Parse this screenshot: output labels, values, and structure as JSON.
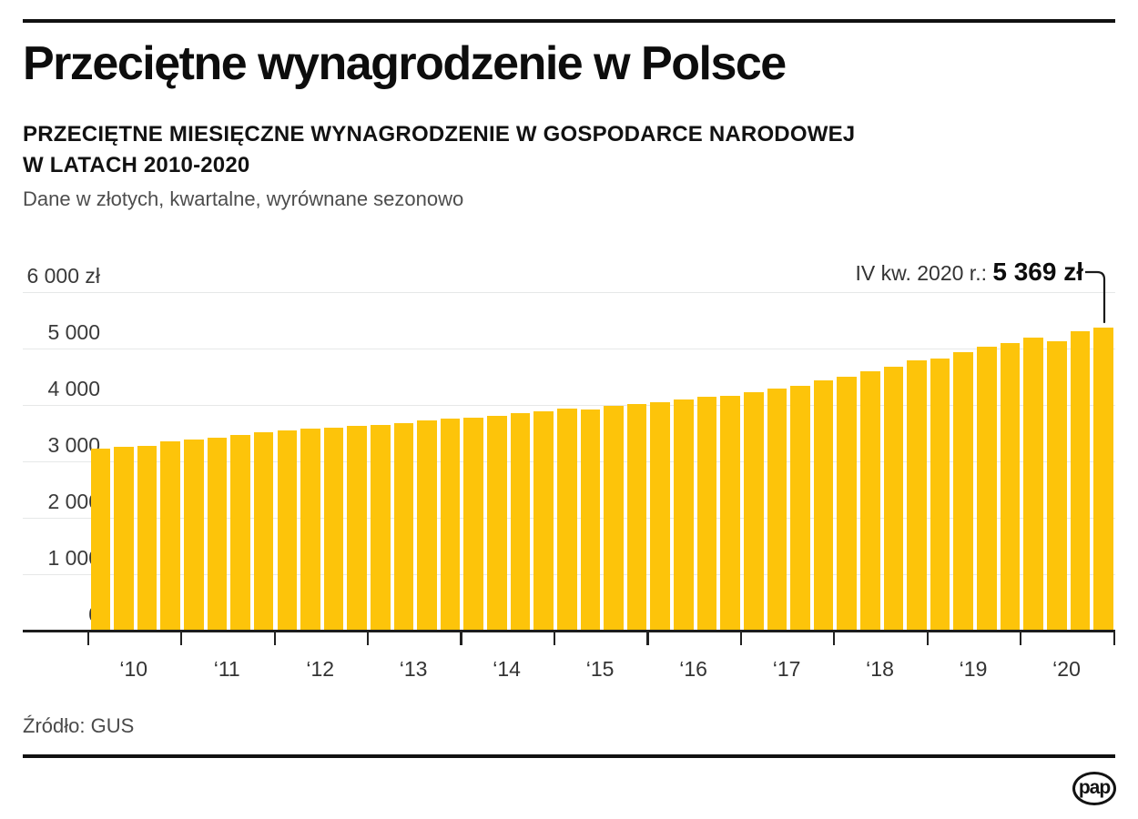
{
  "header": {
    "title": "Przeciętne wynagrodzenie w Polsce",
    "subtitle_line1": "PRZECIĘTNE MIESIĘCZNE WYNAGRODZENIE W GOSPODARCE NARODOWEJ",
    "subtitle_line2": "W LATACH 2010-2020",
    "description": "Dane w złotych, kwartalne, wyrównane sezonowo"
  },
  "annotation": {
    "label": "IV kw. 2020 r.: ",
    "value": "5 369 zł"
  },
  "source": "Źródło: GUS",
  "logo": "pap",
  "colors": {
    "bar": "#FDC40A",
    "text": "#0D0D0D",
    "muted_text": "#4D4D4D",
    "axis_text": "#3A3A3A",
    "gridline": "#E6E8E8",
    "axis_line": "#1D1D1D"
  },
  "chart_data": {
    "type": "bar",
    "title": "Przeciętne miesięczne wynagrodzenie w gospodarce narodowej w latach 2010-2020",
    "subtitle": "Dane w złotych, kwartalne, wyrównane sezonowo",
    "unit": "zł",
    "ylim": [
      0,
      6000
    ],
    "grid": true,
    "legend": "none",
    "y_ticks": [
      {
        "value": 6000,
        "label": "6 000 zł"
      },
      {
        "value": 5000,
        "label": "5 000"
      },
      {
        "value": 4000,
        "label": "4 000"
      },
      {
        "value": 3000,
        "label": "3 000"
      },
      {
        "value": 2000,
        "label": "2 000"
      },
      {
        "value": 1000,
        "label": "1 000"
      },
      {
        "value": 0,
        "label": "0"
      }
    ],
    "x_year_labels": [
      "‘10",
      "‘11",
      "‘12",
      "‘13",
      "‘14",
      "‘15",
      "‘16",
      "‘17",
      "‘18",
      "‘19",
      "‘20"
    ],
    "bars_per_year": 4,
    "categories": [
      "2010 Q1",
      "2010 Q2",
      "2010 Q3",
      "2010 Q4",
      "2011 Q1",
      "2011 Q2",
      "2011 Q3",
      "2011 Q4",
      "2012 Q1",
      "2012 Q2",
      "2012 Q3",
      "2012 Q4",
      "2013 Q1",
      "2013 Q2",
      "2013 Q3",
      "2013 Q4",
      "2014 Q1",
      "2014 Q2",
      "2014 Q3",
      "2014 Q4",
      "2015 Q1",
      "2015 Q2",
      "2015 Q3",
      "2015 Q4",
      "2016 Q1",
      "2016 Q2",
      "2016 Q3",
      "2016 Q4",
      "2017 Q1",
      "2017 Q2",
      "2017 Q3",
      "2017 Q4",
      "2018 Q1",
      "2018 Q2",
      "2018 Q3",
      "2018 Q4",
      "2019 Q1",
      "2019 Q2",
      "2019 Q3",
      "2019 Q4",
      "2020 Q1",
      "2020 Q2",
      "2020 Q3",
      "2020 Q4"
    ],
    "values": [
      3220,
      3255,
      3270,
      3355,
      3380,
      3420,
      3475,
      3510,
      3555,
      3575,
      3595,
      3625,
      3645,
      3680,
      3720,
      3755,
      3780,
      3810,
      3855,
      3880,
      3930,
      3920,
      3980,
      4015,
      4050,
      4090,
      4140,
      4155,
      4225,
      4290,
      4340,
      4430,
      4500,
      4605,
      4680,
      4785,
      4820,
      4930,
      5040,
      5105,
      5200,
      5125,
      5310,
      5369
    ],
    "highlight": {
      "category": "2020 Q4",
      "value": 5369,
      "label": "IV kw. 2020 r.: 5 369 zł"
    }
  }
}
